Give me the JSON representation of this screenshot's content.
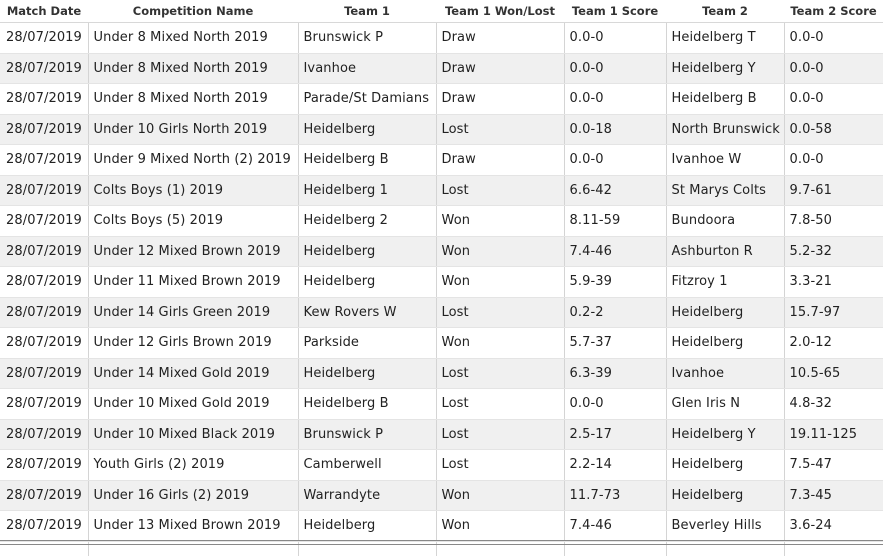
{
  "columns": [
    "Match Date",
    "Competition Name",
    "Team 1",
    "Team 1 Won/Lost",
    "Team 1 Score",
    "Team 2",
    "Team 2 Score"
  ],
  "rows": [
    [
      "28/07/2019",
      "Under 8 Mixed North 2019",
      "Brunswick P",
      "Draw",
      "0.0-0",
      "Heidelberg T",
      "0.0-0"
    ],
    [
      "28/07/2019",
      "Under 8 Mixed North 2019",
      "Ivanhoe",
      "Draw",
      "0.0-0",
      "Heidelberg Y",
      "0.0-0"
    ],
    [
      "28/07/2019",
      "Under 8 Mixed North 2019",
      "Parade/St Damians",
      "Draw",
      "0.0-0",
      "Heidelberg B",
      "0.0-0"
    ],
    [
      "28/07/2019",
      "Under 10 Girls North 2019",
      "Heidelberg",
      "Lost",
      "0.0-18",
      "North Brunswick",
      "0.0-58"
    ],
    [
      "28/07/2019",
      "Under 9 Mixed North (2) 2019",
      "Heidelberg B",
      "Draw",
      "0.0-0",
      "Ivanhoe W",
      "0.0-0"
    ],
    [
      "28/07/2019",
      "Colts Boys (1) 2019",
      "Heidelberg 1",
      "Lost",
      "6.6-42",
      "St Marys Colts",
      "9.7-61"
    ],
    [
      "28/07/2019",
      "Colts Boys (5) 2019",
      "Heidelberg 2",
      "Won",
      "8.11-59",
      "Bundoora",
      "7.8-50"
    ],
    [
      "28/07/2019",
      "Under 12 Mixed Brown 2019",
      "Heidelberg",
      "Won",
      "7.4-46",
      "Ashburton R",
      "5.2-32"
    ],
    [
      "28/07/2019",
      "Under 11 Mixed Brown 2019",
      "Heidelberg",
      "Won",
      "5.9-39",
      "Fitzroy 1",
      "3.3-21"
    ],
    [
      "28/07/2019",
      "Under 14 Girls Green 2019",
      "Kew Rovers W",
      "Lost",
      "0.2-2",
      "Heidelberg",
      "15.7-97"
    ],
    [
      "28/07/2019",
      "Under 12 Girls Brown 2019",
      "Parkside",
      "Won",
      "5.7-37",
      "Heidelberg",
      "2.0-12"
    ],
    [
      "28/07/2019",
      "Under 14 Mixed Gold 2019",
      "Heidelberg",
      "Lost",
      "6.3-39",
      "Ivanhoe",
      "10.5-65"
    ],
    [
      "28/07/2019",
      "Under 10 Mixed Gold 2019",
      "Heidelberg B",
      "Lost",
      "0.0-0",
      "Glen Iris N",
      "4.8-32"
    ],
    [
      "28/07/2019",
      "Under 10 Mixed Black 2019",
      "Brunswick P",
      "Lost",
      "2.5-17",
      "Heidelberg Y",
      "19.11-125"
    ],
    [
      "28/07/2019",
      "Youth Girls (2) 2019",
      "Camberwell",
      "Lost",
      "2.2-14",
      "Heidelberg",
      "7.5-47"
    ],
    [
      "28/07/2019",
      "Under 16 Girls (2) 2019",
      "Warrandyte",
      "Won",
      "11.7-73",
      "Heidelberg",
      "7.3-45"
    ],
    [
      "28/07/2019",
      "Under 13 Mixed Brown 2019",
      "Heidelberg",
      "Won",
      "7.4-46",
      "Beverley Hills",
      "3.6-24"
    ]
  ]
}
